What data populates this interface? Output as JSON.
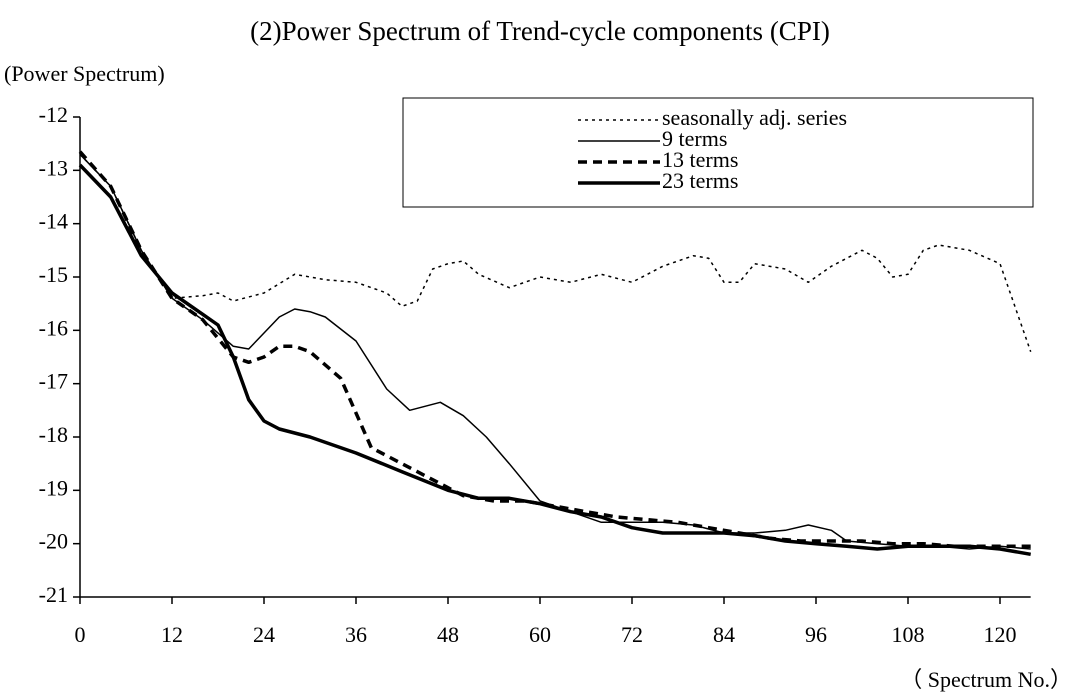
{
  "chart_data": {
    "type": "line",
    "title": "(2)Power Spectrum of Trend-cycle components (CPI)",
    "y_label": "(Power Spectrum)",
    "x_label": "（ Spectrum No.）",
    "xlim": [
      0,
      124
    ],
    "xticks": [
      0,
      12,
      24,
      36,
      48,
      60,
      72,
      84,
      96,
      108,
      120
    ],
    "ylim": [
      -21,
      -12
    ],
    "yticks": [
      -21,
      -20,
      -19,
      -18,
      -17,
      -16,
      -15,
      -14,
      -13,
      -12
    ],
    "grid": false,
    "legend": "upper right",
    "series": [
      {
        "name": "seasonally adj. series",
        "color": "#000000",
        "line_style": "dotted",
        "line_width": 1.5,
        "x": [
          0,
          4,
          8,
          12,
          16,
          18,
          20,
          24,
          28,
          32,
          36,
          40,
          42,
          44,
          46,
          48,
          50,
          52,
          56,
          60,
          64,
          68,
          72,
          76,
          80,
          82,
          84,
          86,
          88,
          92,
          95,
          98,
          102,
          104,
          106,
          108,
          110,
          112,
          116,
          120,
          124
        ],
        "values": [
          -12.7,
          -13.3,
          -14.5,
          -15.4,
          -15.35,
          -15.3,
          -15.45,
          -15.3,
          -14.95,
          -15.05,
          -15.1,
          -15.3,
          -15.55,
          -15.45,
          -14.85,
          -14.75,
          -14.7,
          -14.95,
          -15.2,
          -15.0,
          -15.1,
          -14.95,
          -15.1,
          -14.8,
          -14.6,
          -14.65,
          -15.1,
          -15.1,
          -14.75,
          -14.85,
          -15.1,
          -14.8,
          -14.5,
          -14.65,
          -15.0,
          -14.95,
          -14.5,
          -14.4,
          -14.5,
          -14.75,
          -16.4
        ]
      },
      {
        "name": "9 terms",
        "color": "#000000",
        "line_style": "solid",
        "line_width": 1.5,
        "x": [
          0,
          4,
          8,
          12,
          16,
          20,
          22,
          24,
          26,
          28,
          30,
          32,
          36,
          40,
          43,
          47,
          50,
          53,
          56,
          60,
          64,
          68,
          72,
          76,
          80,
          84,
          88,
          92,
          95,
          98,
          100,
          104,
          108,
          112,
          116,
          120,
          124
        ],
        "values": [
          -12.7,
          -13.3,
          -14.5,
          -15.4,
          -15.8,
          -16.3,
          -16.35,
          -16.05,
          -15.75,
          -15.6,
          -15.65,
          -15.75,
          -16.2,
          -17.1,
          -17.5,
          -17.35,
          -17.6,
          -18.0,
          -18.5,
          -19.2,
          -19.4,
          -19.6,
          -19.6,
          -19.6,
          -19.65,
          -19.8,
          -19.8,
          -19.75,
          -19.65,
          -19.75,
          -19.95,
          -20.0,
          -20.05,
          -20.05,
          -20.1,
          -20.05,
          -20.1
        ]
      },
      {
        "name": "13 terms",
        "color": "#000000",
        "line_style": "dashed",
        "line_width": 3.5,
        "x": [
          0,
          4,
          8,
          12,
          16,
          20,
          22,
          24,
          26,
          28,
          30,
          34,
          38,
          42,
          46,
          50,
          54,
          58,
          62,
          66,
          70,
          74,
          78,
          82,
          86,
          90,
          94,
          98,
          102,
          106,
          110,
          114,
          118,
          124
        ],
        "values": [
          -12.65,
          -13.3,
          -14.5,
          -15.4,
          -15.8,
          -16.5,
          -16.6,
          -16.5,
          -16.3,
          -16.3,
          -16.4,
          -16.9,
          -18.2,
          -18.5,
          -18.8,
          -19.1,
          -19.2,
          -19.2,
          -19.3,
          -19.4,
          -19.5,
          -19.55,
          -19.6,
          -19.7,
          -19.8,
          -19.9,
          -19.95,
          -19.95,
          -19.95,
          -20.0,
          -20.0,
          -20.05,
          -20.05,
          -20.05
        ]
      },
      {
        "name": "23 terms",
        "color": "#000000",
        "line_style": "solid",
        "line_width": 3.5,
        "x": [
          0,
          4,
          8,
          12,
          16,
          18,
          20,
          22,
          24,
          26,
          30,
          36,
          42,
          48,
          52,
          56,
          60,
          64,
          68,
          72,
          76,
          80,
          84,
          88,
          92,
          96,
          100,
          104,
          108,
          112,
          116,
          120,
          124
        ],
        "values": [
          -12.9,
          -13.5,
          -14.6,
          -15.3,
          -15.7,
          -15.9,
          -16.5,
          -17.3,
          -17.7,
          -17.85,
          -18.0,
          -18.3,
          -18.65,
          -19.0,
          -19.15,
          -19.15,
          -19.25,
          -19.4,
          -19.5,
          -19.7,
          -19.8,
          -19.8,
          -19.8,
          -19.85,
          -19.95,
          -20.0,
          -20.05,
          -20.1,
          -20.05,
          -20.05,
          -20.05,
          -20.1,
          -20.2
        ]
      }
    ]
  }
}
